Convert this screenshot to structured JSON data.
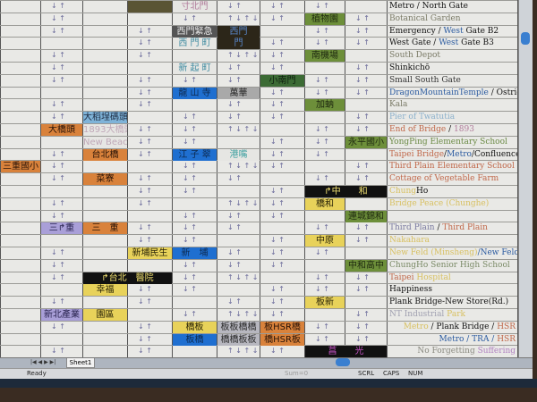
{
  "sheet_tab": "Sheet1",
  "status": {
    "ready": "Ready",
    "sum": "Sum=0",
    "scrl": "SCRL",
    "caps": "CAPS",
    "num": "NUM"
  },
  "cells": [
    {
      "text": "",
      "bg": "#5a5434",
      "fg": "#fff"
    },
    {
      "text": "寸北門",
      "bg": "#e6e6e3",
      "fg": "#b07a9a"
    },
    {
      "text": "植物園",
      "bg": "#6d8f3a",
      "fg": "#1f2a10"
    },
    {
      "text": "西門緊急",
      "bg": "#555",
      "fg": "#eee"
    },
    {
      "text": "西門",
      "bg": "#2c2619",
      "fg": "#5a8ad0"
    },
    {
      "text": "西 門 町",
      "bg": "#e6e6e3",
      "fg": "#3e8aa0"
    },
    {
      "text": "門",
      "bg": "#2c2619",
      "fg": "#5a8ad0"
    },
    {
      "text": "南機場",
      "bg": "#6d8f3a",
      "fg": "#1f2a10"
    },
    {
      "text": "新 起 町",
      "bg": "#e6e6e3",
      "fg": "#3e8aa0"
    },
    {
      "text": "小南門",
      "bg": "#3c6b35",
      "fg": "#0e1e0e"
    },
    {
      "text": "龍 山 寺",
      "bg": "#1f6fd0",
      "fg": "#0d2a50"
    },
    {
      "text": "萬華",
      "bg": "#a9a9a9",
      "fg": "#222"
    },
    {
      "text": "加蚋",
      "bg": "#6d8f3a",
      "fg": "#1f2a10"
    },
    {
      "text": "大稻埕碼頭",
      "bg": "#7fb3d8",
      "fg": "#1d2a40"
    },
    {
      "text": "大橋頭",
      "bg": "#d9823b",
      "fg": "#2a1408"
    },
    {
      "text": "1893大橋頭",
      "bg": "#e6e6e3",
      "fg": "#c0a8b8"
    },
    {
      "text": "New Beach",
      "bg": "#e6e6e3",
      "fg": "#c0a8b8"
    },
    {
      "text": "台北橋",
      "bg": "#d9823b",
      "fg": "#2a1408"
    },
    {
      "text": "江 子 翠",
      "bg": "#1f6fd0",
      "fg": "#0d2a50"
    },
    {
      "text": "港嘴",
      "bg": "#e6e6e3",
      "fg": "#3ea0a0"
    },
    {
      "text": "永平國小",
      "bg": "#6d8f3a",
      "fg": "#1f2a10"
    },
    {
      "text": "三重國小",
      "bg": "#d9823b",
      "fg": "#2a1408"
    },
    {
      "text": "菜寮",
      "bg": "#d9823b",
      "fg": "#2a1408"
    },
    {
      "text": "↱中　　和",
      "bg": "#111",
      "fg": "#f0e070"
    },
    {
      "text": "橋和",
      "bg": "#e8d25a",
      "fg": "#2a2408"
    },
    {
      "text": "連城錦和",
      "bg": "#6d8f3a",
      "fg": "#1f2a10"
    },
    {
      "text": "三↱重",
      "bg": "#a99fd8",
      "fg": "#2a2450"
    },
    {
      "text": "三　重",
      "bg": "#d9823b",
      "fg": "#2a1408"
    },
    {
      "text": "中原",
      "bg": "#e8d25a",
      "fg": "#2a2408"
    },
    {
      "text": "新埔民生",
      "bg": "#e8d25a",
      "fg": "#2a2408"
    },
    {
      "text": "新　埔",
      "bg": "#1f6fd0",
      "fg": "#0d2a50"
    },
    {
      "text": "中和高中",
      "bg": "#6d8f3a",
      "fg": "#1f2a10"
    },
    {
      "text": "↱台北　醫院",
      "bg": "#111",
      "fg": "#f0e070"
    },
    {
      "text": "幸福",
      "bg": "#e8d25a",
      "fg": "#2a2408"
    },
    {
      "text": "板新",
      "bg": "#e8d25a",
      "fg": "#2a2408"
    },
    {
      "text": "新北產業",
      "bg": "#a99fd8",
      "fg": "#2a2450"
    },
    {
      "text": "園區",
      "bg": "#e8d25a",
      "fg": "#2a2408"
    },
    {
      "text": "橋板",
      "bg": "#e8d25a",
      "fg": "#2a2408"
    },
    {
      "text": "板板橋橋",
      "bg": "#b7b7bf",
      "fg": "#2a2a2a"
    },
    {
      "text": "板HSR橋",
      "bg": "#d9823b",
      "fg": "#2a1408"
    },
    {
      "text": "板橋",
      "bg": "#1f6fd0",
      "fg": "#0d2a50"
    },
    {
      "text": "橋橋板板",
      "bg": "#b7b7bf",
      "fg": "#2a2a2a"
    },
    {
      "text": "橋HSR板",
      "bg": "#d9823b",
      "fg": "#2a1408"
    },
    {
      "text": "菖　　光",
      "bg": "#111",
      "fg": "#c050c0"
    }
  ],
  "labels": [
    {
      "segs": [
        {
          "t": "Metro / North Gate",
          "c": "#111"
        }
      ]
    },
    {
      "segs": [
        {
          "t": "Botanical Garden",
          "c": "#7a7a66"
        }
      ]
    },
    {
      "segs": [
        {
          "t": "Emergency / ",
          "c": "#111"
        },
        {
          "t": "West",
          "c": "#2a5aa0"
        },
        {
          "t": " Gate B2",
          "c": "#111"
        }
      ]
    },
    {
      "segs": [
        {
          "t": "West Gate / ",
          "c": "#111"
        },
        {
          "t": "West",
          "c": "#2a5aa0"
        },
        {
          "t": " Gate B3",
          "c": "#111"
        }
      ]
    },
    {
      "segs": [
        {
          "t": "South Depot",
          "c": "#7a7a66"
        }
      ]
    },
    {
      "segs": [
        {
          "t": "Shinkichō",
          "c": "#111"
        }
      ]
    },
    {
      "segs": [
        {
          "t": "Small South Gate",
          "c": "#333"
        }
      ]
    },
    {
      "segs": [
        {
          "t": "DragonMountainTemple",
          "c": "#2a5aa0"
        },
        {
          "t": " / OstriggerCanoe",
          "c": "#111"
        }
      ]
    },
    {
      "segs": [
        {
          "t": "Kala",
          "c": "#7a7a66"
        }
      ]
    },
    {
      "segs": [
        {
          "t": "Pier of Twatutia",
          "c": "#8ab0cc"
        }
      ]
    },
    {
      "segs": [
        {
          "t": "End of Bridge",
          "c": "#c0684a"
        },
        {
          "t": " / ",
          "c": "#111"
        },
        {
          "t": "1893",
          "c": "#b07a9a"
        }
      ]
    },
    {
      "segs": [
        {
          "t": "YongPing Elementary School",
          "c": "#6a8a44"
        }
      ]
    },
    {
      "segs": [
        {
          "t": "Taipei Bridge",
          "c": "#c0684a"
        },
        {
          "t": "/",
          "c": "#111"
        },
        {
          "t": "Metro",
          "c": "#2a5aa0"
        },
        {
          "t": "/Confluence",
          "c": "#111"
        }
      ]
    },
    {
      "segs": [
        {
          "t": "Third Plain Elementary School",
          "c": "#c0684a"
        }
      ]
    },
    {
      "segs": [
        {
          "t": "Cottage of Vegetable Farm",
          "c": "#c0684a"
        }
      ]
    },
    {
      "segs": [
        {
          "t": "Chung",
          "c": "#d8c060"
        },
        {
          "t": "Ho",
          "c": "#111"
        }
      ]
    },
    {
      "segs": [
        {
          "t": "Bridge Peace (Chunghe)",
          "c": "#d8c060"
        }
      ]
    },
    {
      "segs": []
    },
    {
      "segs": [
        {
          "t": "Third Plain",
          "c": "#7a7aa0"
        },
        {
          "t": " / ",
          "c": "#111"
        },
        {
          "t": "Third Plain",
          "c": "#c0684a"
        }
      ]
    },
    {
      "segs": [
        {
          "t": "Nakahara",
          "c": "#d8c060"
        }
      ]
    },
    {
      "segs": [
        {
          "t": "New Feld (Minsheng)",
          "c": "#d8c060"
        },
        {
          "t": "/New Feld",
          "c": "#2a5aa0"
        }
      ]
    },
    {
      "segs": [
        {
          "t": "ChungHo Senior High School",
          "c": "#7a8a66"
        }
      ]
    },
    {
      "segs": [
        {
          "t": "Taipei",
          "c": "#c0684a"
        },
        {
          "t": " Hospital",
          "c": "#d8c060"
        }
      ]
    },
    {
      "segs": [
        {
          "t": "Happiness",
          "c": "#111"
        }
      ]
    },
    {
      "segs": [
        {
          "t": "Plank Bridge-New Store(Rd.)",
          "c": "#111"
        }
      ]
    },
    {
      "segs": [
        {
          "t": "NT Industrial ",
          "c": "#a0a0b0"
        },
        {
          "t": "Park",
          "c": "#d8c060"
        }
      ]
    },
    {
      "right": true,
      "segs": [
        {
          "t": "Metro",
          "c": "#d8c060"
        },
        {
          "t": " / Plank Bridge / ",
          "c": "#111"
        },
        {
          "t": "HSR",
          "c": "#c0684a"
        }
      ]
    },
    {
      "right": true,
      "segs": [
        {
          "t": "Metro / TRA / ",
          "c": "#2a5aa0"
        },
        {
          "t": "HSR",
          "c": "#c0684a"
        }
      ]
    },
    {
      "right": true,
      "segs": [
        {
          "t": "No Forgetting ",
          "c": "#8a8a80"
        },
        {
          "t": "Suffering",
          "c": "#b080c0"
        }
      ]
    }
  ]
}
